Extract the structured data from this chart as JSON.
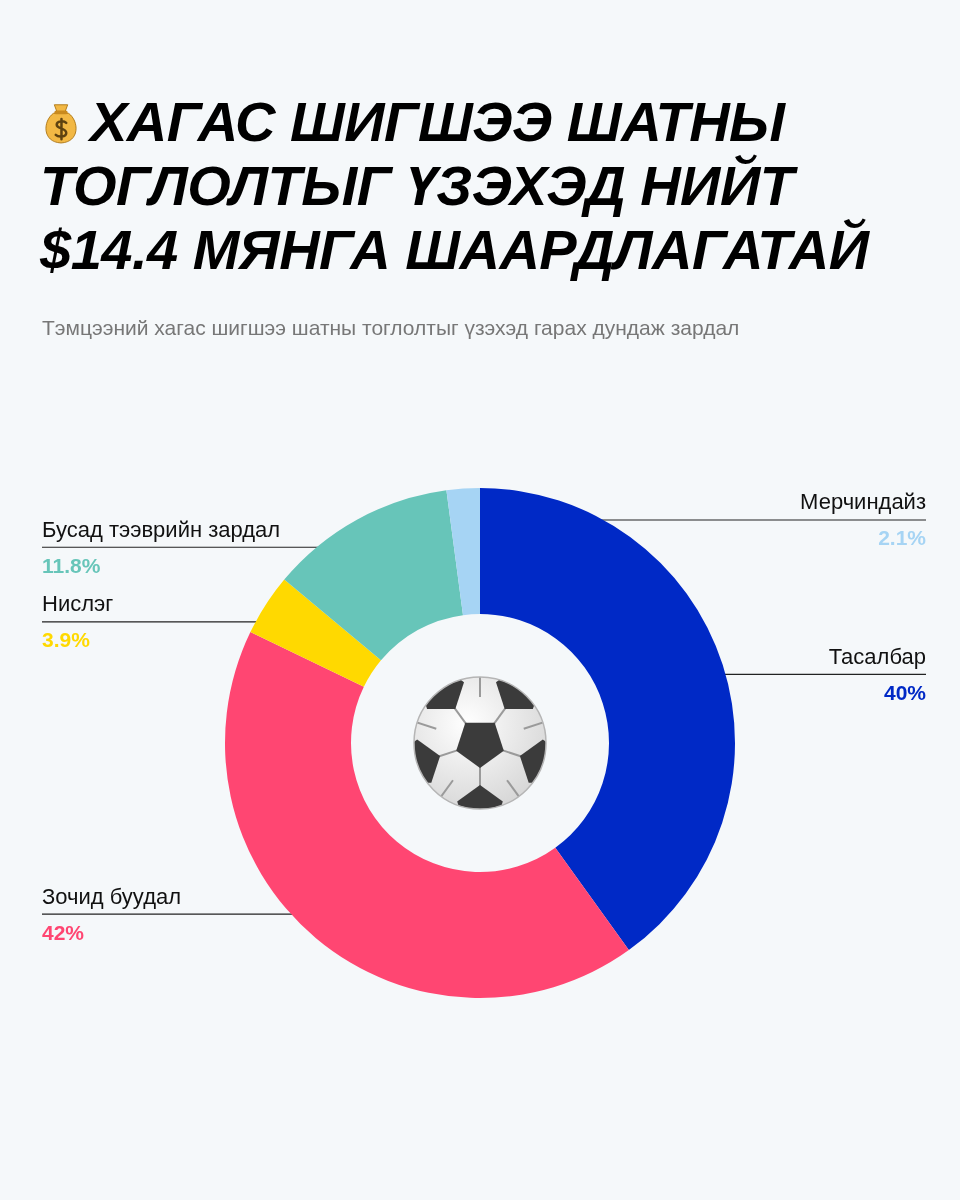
{
  "chart_data": {
    "type": "donut",
    "title": "ХАГАС ШИГШЭЭ ШАТНЫ ТОГЛОЛТЫГ ҮЗЭХЭД НИЙТ $14.4 МЯНГА ШААРДЛАГАТАЙ",
    "subtitle": "Тэмцээний хагас шигшээ шатны тоглолтыг үзэхэд гарах дундаж зардал",
    "categories": [
      "Тасалбар",
      "Зочид буудал",
      "Нислэг",
      "Бусад тээврийн зардал",
      "Мерчиндайз"
    ],
    "values": [
      40,
      42,
      3.9,
      11.8,
      2.1
    ],
    "colors": [
      "#0029c6",
      "#ff4672",
      "#ffd900",
      "#67c5b9",
      "#a6d4f4"
    ],
    "value_labels": [
      "40%",
      "42%",
      "3.9%",
      "11.8%",
      "2.1%"
    ]
  }
}
